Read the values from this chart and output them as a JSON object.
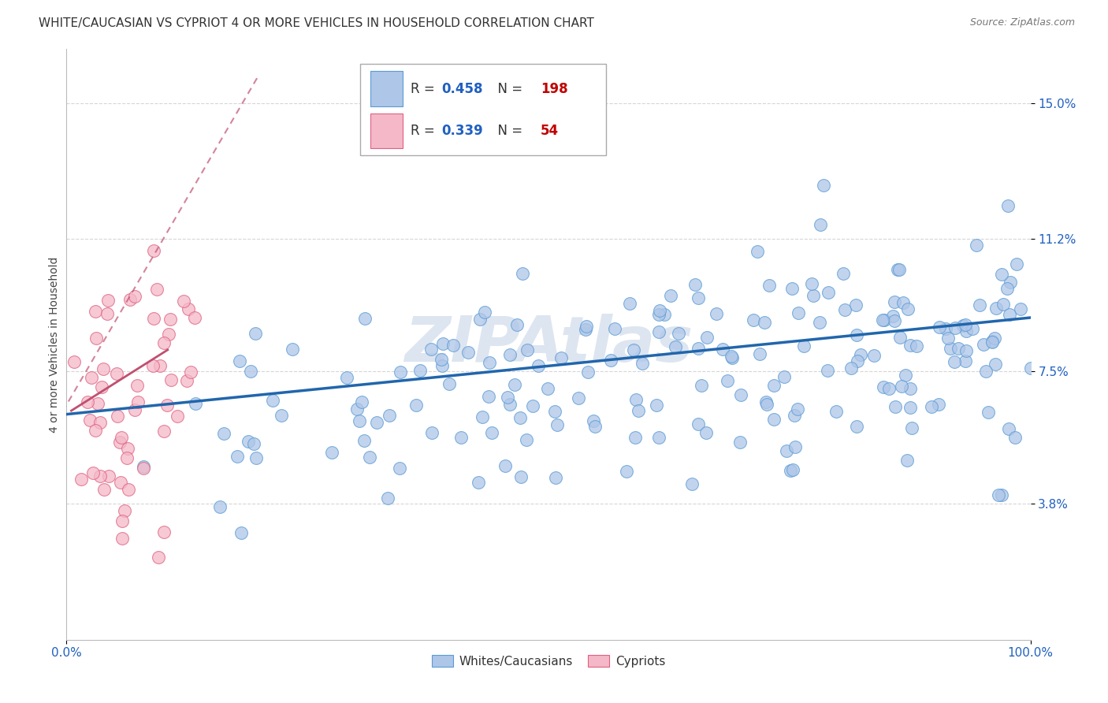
{
  "title": "WHITE/CAUCASIAN VS CYPRIOT 4 OR MORE VEHICLES IN HOUSEHOLD CORRELATION CHART",
  "source": "Source: ZipAtlas.com",
  "ylabel": "4 or more Vehicles in Household",
  "xlim": [
    0,
    100
  ],
  "ylim_min": 0,
  "ylim_max": 16.5,
  "yticks": [
    3.8,
    7.5,
    11.2,
    15.0
  ],
  "ytick_labels": [
    "3.8%",
    "7.5%",
    "11.2%",
    "15.0%"
  ],
  "xtick_labels": [
    "0.0%",
    "100.0%"
  ],
  "blue_R": 0.458,
  "blue_N": 198,
  "pink_R": 0.339,
  "pink_N": 54,
  "blue_fill": "#aec6e8",
  "blue_edge": "#5b9bd5",
  "pink_fill": "#f4b8c8",
  "pink_edge": "#e06080",
  "blue_line_color": "#2166ac",
  "pink_line_color": "#c05070",
  "legend_label_blue": "Whites/Caucasians",
  "legend_label_pink": "Cypriots",
  "R_color": "#2060c0",
  "N_color": "#c00000",
  "tick_color": "#2060c0",
  "background_color": "#ffffff",
  "grid_color": "#cccccc",
  "watermark_text": "ZIPAtlas",
  "watermark_color": "#dde5f0",
  "title_fontsize": 11,
  "axis_label_fontsize": 10,
  "tick_fontsize": 11,
  "legend_fontsize": 12,
  "source_fontsize": 9,
  "blue_line_start_x": 0,
  "blue_line_start_y": 6.3,
  "blue_line_end_x": 100,
  "blue_line_end_y": 9.0,
  "pink_line_solid_start_x": 0.5,
  "pink_line_solid_start_y": 6.4,
  "pink_line_solid_end_x": 10.5,
  "pink_line_solid_end_y": 8.1,
  "pink_line_dash_start_x": -1,
  "pink_line_dash_start_y": 6.1,
  "pink_line_dash_end_x": 20,
  "pink_line_dash_end_y": 15.8
}
